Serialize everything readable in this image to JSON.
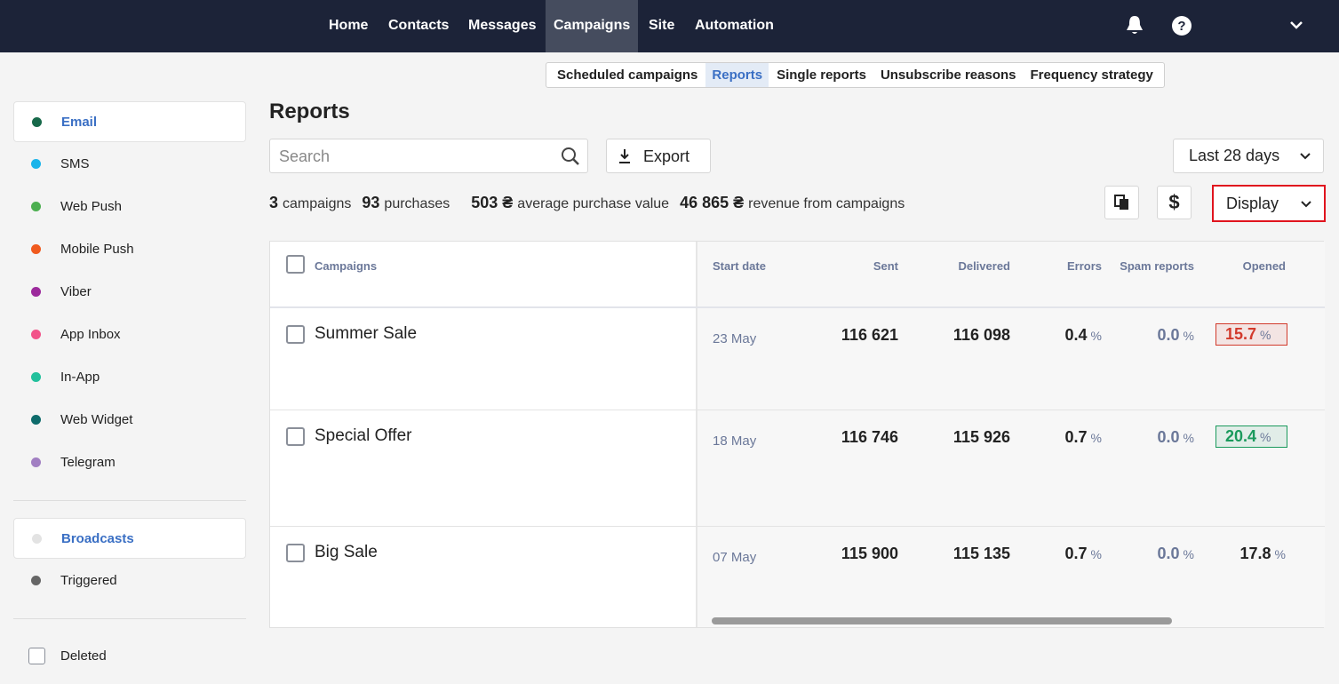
{
  "nav": {
    "items": [
      "Home",
      "Contacts",
      "Messages",
      "Campaigns",
      "Site",
      "Automation"
    ],
    "active": 3
  },
  "subnav": {
    "items": [
      "Scheduled campaigns",
      "Reports",
      "Single reports",
      "Unsubscribe reasons",
      "Frequency strategy"
    ],
    "active": 1
  },
  "sidebar": {
    "channels": [
      {
        "label": "Email",
        "color": "#17694a"
      },
      {
        "label": "SMS",
        "color": "#1ab4ea"
      },
      {
        "label": "Web Push",
        "color": "#4caf50"
      },
      {
        "label": "Mobile Push",
        "color": "#f05a1e"
      },
      {
        "label": "Viber",
        "color": "#9c2a9c"
      },
      {
        "label": "App Inbox",
        "color": "#f25289"
      },
      {
        "label": "In-App",
        "color": "#22c09c"
      },
      {
        "label": "Web Widget",
        "color": "#0e6b6b"
      },
      {
        "label": "Telegram",
        "color": "#a17fc2"
      }
    ],
    "active_channel": 0,
    "types": [
      {
        "label": "Broadcasts",
        "color": "#e3e3e3"
      },
      {
        "label": "Triggered",
        "color": "#666666"
      }
    ],
    "active_type": 0,
    "deleted": "Deleted"
  },
  "page": {
    "title": "Reports",
    "search_placeholder": "Search",
    "export": "Export",
    "period": "Last 28 days",
    "display": "Display"
  },
  "summary": [
    {
      "value": "3",
      "label": "campaigns"
    },
    {
      "value": "93",
      "label": "purchases"
    },
    {
      "value": "503 ₴",
      "label": "average purchase value"
    },
    {
      "value": "46 865 ₴",
      "label": "revenue from campaigns"
    }
  ],
  "table": {
    "columns": [
      "Campaigns",
      "Start date",
      "Sent",
      "Delivered",
      "Errors",
      "Spam reports",
      "Opened"
    ],
    "percent_unit": "%",
    "rows": [
      [
        "Summer Sale",
        "23 May",
        "116 621",
        "116 098",
        "0.4",
        "0.0",
        "15.7"
      ],
      [
        "Special Offer",
        "18 May",
        "116 746",
        "115 926",
        "0.7",
        "0.0",
        "20.4"
      ],
      [
        "Big Sale",
        "07 May",
        "115 900",
        "115 135",
        "0.7",
        "0.0",
        "17.8"
      ]
    ],
    "opened_colors": [
      "#d23a2c",
      "#1a9a5c",
      null
    ]
  }
}
